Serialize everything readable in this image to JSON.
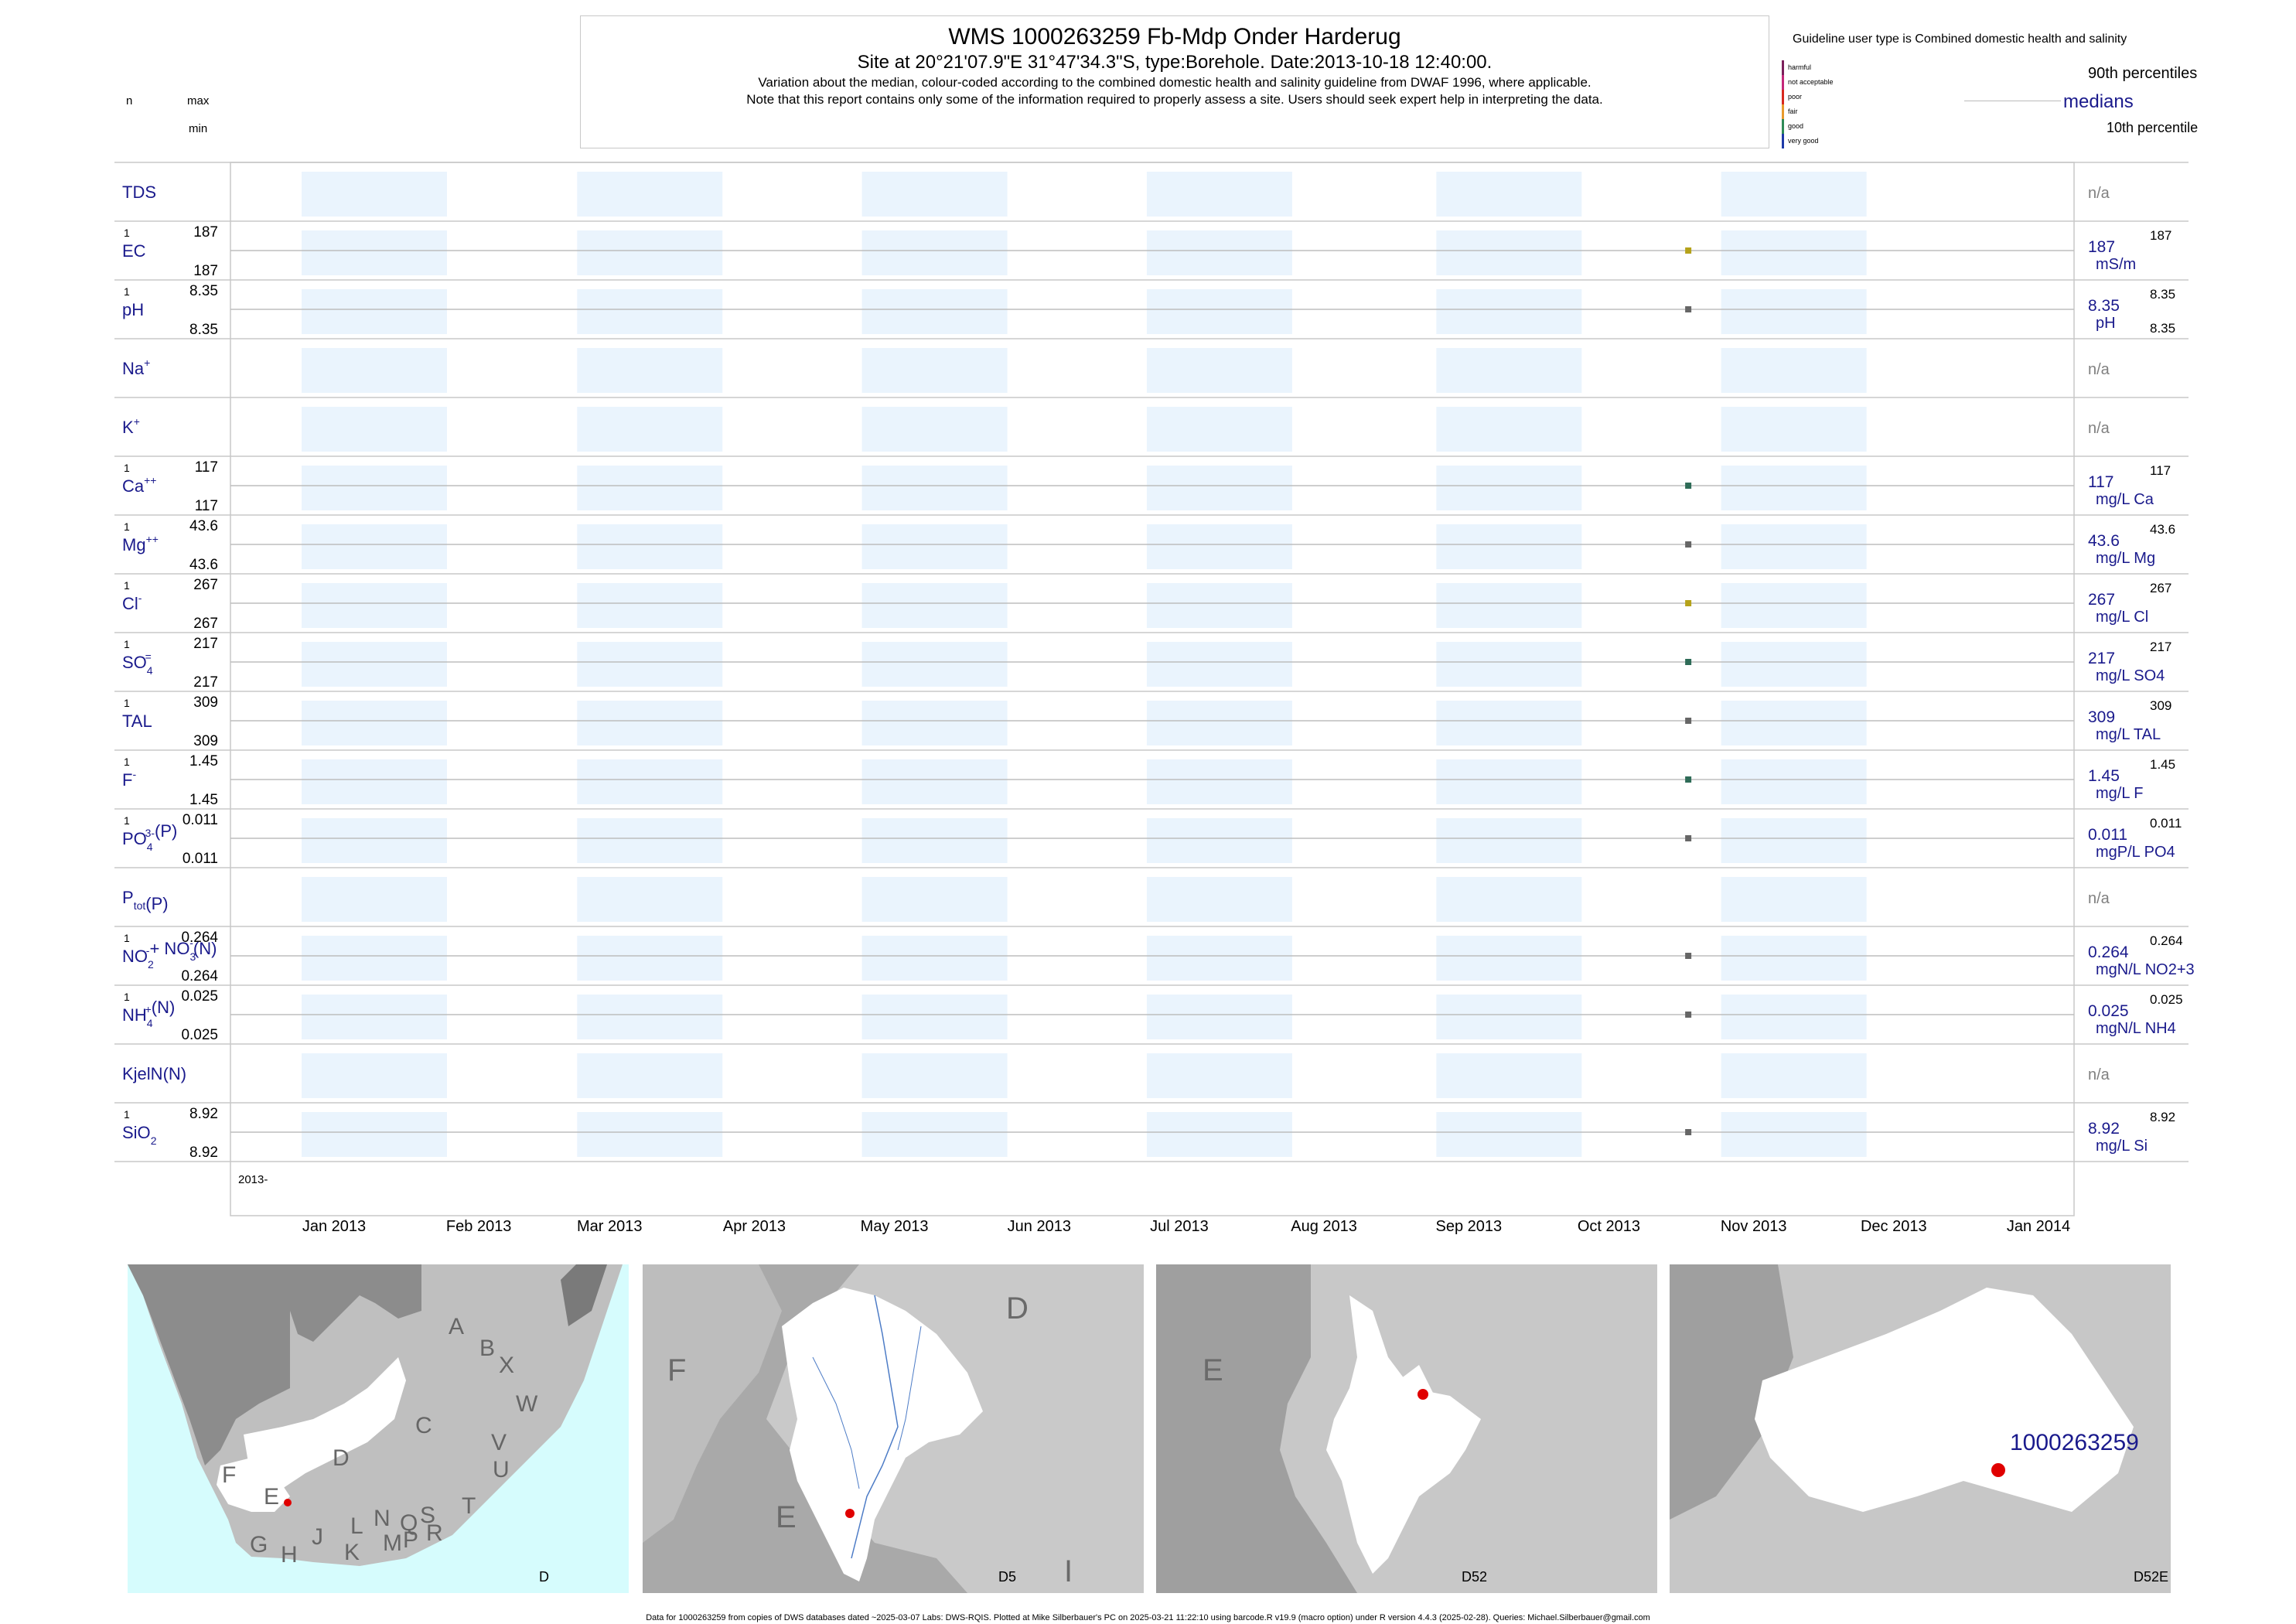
{
  "header": {
    "title": "WMS 1000263259  Fb-Mdp Onder Harderug",
    "subtitle": "Site at 20°21'07.9\"E 31°47'34.3\"S, type:Borehole. Date:2013-10-18 12:40:00.",
    "line3": "Variation about the median,  colour-coded according to the combined domestic health and salinity guideline from DWAF 1996, where applicable.",
    "line4": "Note that this report contains only some of the information required to properly assess a site. Users should seek expert help in interpreting the data."
  },
  "legend": {
    "guideline_text": "Guideline user type is Combined domestic health and salinity",
    "classes": [
      {
        "label": "harmful",
        "color": "#7b1f5a"
      },
      {
        "label": "not acceptable",
        "color": "#c4287a"
      },
      {
        "label": "poor",
        "color": "#d7281e"
      },
      {
        "label": "fair",
        "color": "#e89a2c"
      },
      {
        "label": "good",
        "color": "#2e8b57"
      },
      {
        "label": "very good",
        "color": "#1e3aa8"
      }
    ],
    "p90": "90th percentiles",
    "medians": "medians",
    "p10": "10th percentile"
  },
  "columns": {
    "n": "n",
    "max": "max",
    "min": "min"
  },
  "chart_data": {
    "type": "scatter",
    "x_axis_prefix": "2013-",
    "x_ticks": [
      "Jan 2013",
      "Feb 2013",
      "Mar 2013",
      "Apr 2013",
      "May 2013",
      "Jun 2013",
      "Jul 2013",
      "Aug 2013",
      "Sep 2013",
      "Oct 2013",
      "Nov 2013",
      "Dec 2013",
      "Jan 2014"
    ],
    "sample_date": "2013-10-18",
    "na_text": "n/a",
    "panels": [
      {
        "label": "TDS",
        "n": "",
        "max": "",
        "min": "",
        "median": "",
        "p90": "",
        "unit": ""
      },
      {
        "label": "EC",
        "n": "1",
        "max": "187",
        "min": "187",
        "median": "187",
        "p90": "187",
        "unit": "mS/m",
        "value": 187,
        "color": "#b5a21a"
      },
      {
        "label": "pH",
        "n": "1",
        "max": "8.35",
        "min": "8.35",
        "median": "8.35",
        "p90": "8.35",
        "p10": "8.35",
        "unit": "pH",
        "value": 8.35,
        "color": "#666666"
      },
      {
        "label": "Na",
        "sup": "+",
        "n": "",
        "max": "",
        "min": "",
        "median": "",
        "p90": "",
        "unit": ""
      },
      {
        "label": "K",
        "sup": "+",
        "n": "",
        "max": "",
        "min": "",
        "median": "",
        "p90": "",
        "unit": ""
      },
      {
        "label": "Ca",
        "sup": "++",
        "n": "1",
        "max": "117",
        "min": "117",
        "median": "117",
        "p90": "117",
        "unit": "mg/L Ca",
        "value": 117,
        "color": "#2e6b57"
      },
      {
        "label": "Mg",
        "sup": "++",
        "n": "1",
        "max": "43.6",
        "min": "43.6",
        "median": "43.6",
        "p90": "43.6",
        "unit": "mg/L Mg",
        "value": 43.6,
        "color": "#666666"
      },
      {
        "label": "Cl",
        "sup": "-",
        "n": "1",
        "max": "267",
        "min": "267",
        "median": "267",
        "p90": "267",
        "unit": "mg/L Cl",
        "value": 267,
        "color": "#b5a21a"
      },
      {
        "label": "SO",
        "sub": "4",
        "sup": "=",
        "n": "1",
        "max": "217",
        "min": "217",
        "median": "217",
        "p90": "217",
        "unit": "mg/L SO4",
        "value": 217,
        "color": "#2e6b57"
      },
      {
        "label": "TAL",
        "n": "1",
        "max": "309",
        "min": "309",
        "median": "309",
        "p90": "309",
        "unit": "mg/L TAL",
        "value": 309,
        "color": "#666666"
      },
      {
        "label": "F",
        "sup": "-",
        "n": "1",
        "max": "1.45",
        "min": "1.45",
        "median": "1.45",
        "p90": "1.45",
        "unit": "mg/L F",
        "value": 1.45,
        "color": "#2e6b57"
      },
      {
        "label": "PO",
        "sub": "4",
        "sup": "3-",
        "tail": "(P)",
        "n": "1",
        "max": "0.011",
        "min": "0.011",
        "median": "0.011",
        "p90": "0.011",
        "unit": "mgP/L PO4",
        "value": 0.011,
        "color": "#666666"
      },
      {
        "label": "P",
        "sub": "tot",
        "tail": "(P)",
        "n": "",
        "max": "",
        "min": "",
        "median": "",
        "p90": "",
        "unit": ""
      },
      {
        "label": "NO",
        "sub": "2",
        "sup": "-",
        "tail": "+ NO",
        "sub2": "3",
        "sup2": "-",
        "tail2": "(N)",
        "n": "1",
        "max": "0.264",
        "min": "0.264",
        "median": "0.264",
        "p90": "0.264",
        "unit": "mgN/L NO2+3",
        "value": 0.264,
        "color": "#666666"
      },
      {
        "label": "NH",
        "sub": "4",
        "sup": "+",
        "tail": "(N)",
        "n": "1",
        "max": "0.025",
        "min": "0.025",
        "median": "0.025",
        "p90": "0.025",
        "unit": "mgN/L NH4",
        "value": 0.025,
        "color": "#666666"
      },
      {
        "label": "KjelN(N)",
        "n": "",
        "max": "",
        "min": "",
        "median": "",
        "p90": "",
        "unit": ""
      },
      {
        "label": "SiO",
        "sub": "2",
        "n": "1",
        "max": "8.92",
        "min": "8.92",
        "median": "8.92",
        "p90": "8.92",
        "unit": "mg/L Si",
        "value": 8.92,
        "color": "#666666"
      }
    ]
  },
  "maps": [
    {
      "caption": "D",
      "labels": [
        "A",
        "B",
        "X",
        "W",
        "C",
        "V",
        "U",
        "D",
        "T",
        "F",
        "E",
        "G",
        "H",
        "J",
        "K",
        "L",
        "M",
        "N",
        "P",
        "Q",
        "R",
        "S"
      ]
    },
    {
      "caption": "D5",
      "labels": [
        "D",
        "F",
        "E",
        "I"
      ]
    },
    {
      "caption": "D52",
      "labels": [
        "E"
      ]
    },
    {
      "caption": "D52E",
      "labels": [
        "1000263259"
      ]
    }
  ],
  "footer": "Data for 1000263259 from copies of DWS databases dated ~2025-03-07 Labs: DWS-RQIS. Plotted at Mike Silberbauer's PC on 2025-03-21 11:22:10 using barcode.R v19.9 (macro option) under R version 4.4.3 (2025-02-28). Queries: Michael.Silberbauer@gmail.com"
}
